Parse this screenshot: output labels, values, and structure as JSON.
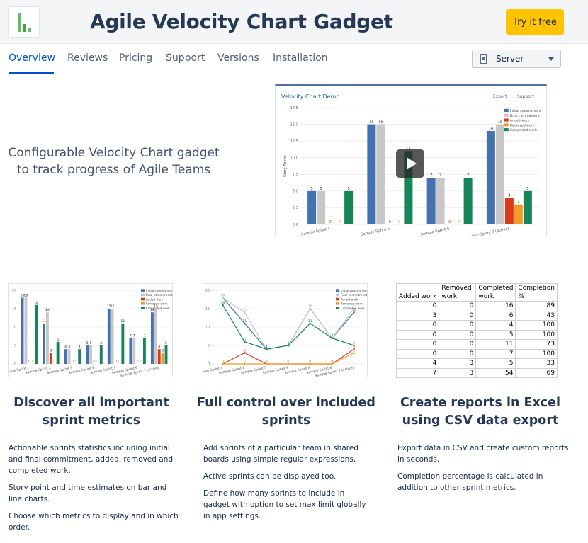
{
  "app": {
    "title": "Agile Velocity Chart Gadget",
    "cta_label": "Try it free"
  },
  "nav": {
    "tabs": [
      "Overview",
      "Reviews",
      "Pricing",
      "Support",
      "Versions",
      "Installation"
    ],
    "active_tab": "Overview",
    "hosting_selected": "Server"
  },
  "hero": {
    "tagline_line1": "Configurable Velocity Chart gadget",
    "tagline_line2": "to track progress of Agile Teams",
    "video_title": "Velocity Chart Demo",
    "export_label": "Export",
    "support_label": "Support"
  },
  "colors": {
    "accent": "#0052cc",
    "cta": "#ffc400",
    "initial": "#4472b0",
    "final": "#c8c8c8",
    "added": "#d83a1a",
    "removed": "#f29b2a",
    "completed": "#16855a"
  },
  "chart_data": [
    {
      "name": "hero-velocity-chart",
      "type": "bar",
      "title": "Velocity Chart Demo",
      "ylabel": "Story Points",
      "ylim": [
        0,
        17.5
      ],
      "yticks": [
        0.0,
        2.5,
        5.0,
        7.5,
        10.0,
        12.5,
        15.0,
        17.5
      ],
      "categories": [
        "Sample Sprint 4",
        "Sample Sprint 5",
        "Sample Sprint 6",
        "Sample Sprint 7 (active)"
      ],
      "series": [
        {
          "name": "Initial commitment",
          "values": [
            5,
            15,
            7,
            14
          ]
        },
        {
          "name": "Final commitment",
          "values": [
            5,
            15,
            7,
            15
          ]
        },
        {
          "name": "Added work",
          "values": [
            0,
            0,
            0,
            4
          ]
        },
        {
          "name": "Removed work",
          "values": [
            0,
            0,
            0,
            3
          ]
        },
        {
          "name": "Completed work",
          "values": [
            5,
            11,
            7,
            5
          ]
        }
      ]
    },
    {
      "name": "thumb-bar-chart",
      "type": "bar",
      "ylim": [
        0,
        20
      ],
      "yticks": [
        0,
        5,
        10,
        15,
        20
      ],
      "categories": [
        "Sample Sprint 1",
        "Sample Sprint 2",
        "Sample Sprint 3",
        "Sample Sprint 4",
        "Sample Sprint 5",
        "Sample Sprint 6",
        "Sample Sprint 7 (active)"
      ],
      "series": [
        {
          "name": "Initial commitment",
          "values": [
            18,
            11,
            4,
            5,
            15,
            7,
            14
          ]
        },
        {
          "name": "Final commitment",
          "values": [
            18,
            14,
            4,
            5,
            15,
            7,
            15
          ]
        },
        {
          "name": "Added work",
          "values": [
            0,
            3,
            0,
            0,
            0,
            0,
            4
          ]
        },
        {
          "name": "Removed work",
          "values": [
            0,
            0,
            0,
            0,
            0,
            0,
            3
          ]
        },
        {
          "name": "Completed work",
          "values": [
            16,
            6,
            4,
            5,
            11,
            7,
            5
          ]
        }
      ]
    },
    {
      "name": "thumb-line-chart",
      "type": "line",
      "ylim": [
        0,
        20
      ],
      "yticks": [
        0,
        5,
        10,
        15,
        20
      ],
      "categories": [
        "Sample Sprint 1",
        "Sample Sprint 2",
        "Sample Sprint 3",
        "Sample Sprint 4",
        "Sample Sprint 5",
        "Sample Sprint 6",
        "Sample Sprint 7 (active)"
      ],
      "series": [
        {
          "name": "Initial commitment",
          "values": [
            18,
            11,
            4,
            5,
            15,
            7,
            14
          ]
        },
        {
          "name": "Final commitment",
          "values": [
            18,
            14,
            4,
            5,
            15,
            7,
            15
          ]
        },
        {
          "name": "Added work",
          "values": [
            0,
            3,
            0,
            0,
            0,
            0,
            4
          ]
        },
        {
          "name": "Removed work",
          "values": [
            0,
            0,
            0,
            0,
            0,
            0,
            3
          ]
        },
        {
          "name": "Completed work",
          "values": [
            16,
            6,
            4,
            5,
            11,
            7,
            5
          ]
        }
      ]
    }
  ],
  "csv_table": {
    "headers": [
      "Added work",
      "Removed work",
      "Completed work",
      "Completion %"
    ],
    "rows": [
      [
        "0",
        "0",
        "16",
        "89"
      ],
      [
        "3",
        "0",
        "6",
        "43"
      ],
      [
        "0",
        "0",
        "4",
        "100"
      ],
      [
        "0",
        "0",
        "5",
        "100"
      ],
      [
        "0",
        "0",
        "11",
        "73"
      ],
      [
        "0",
        "0",
        "7",
        "100"
      ],
      [
        "4",
        "3",
        "5",
        "33"
      ],
      [
        "7",
        "3",
        "54",
        "69"
      ]
    ]
  },
  "features": [
    {
      "title_line1": "Discover all important",
      "title_line2": "sprint metrics",
      "paragraphs": [
        [
          "Actionable sprints statistics including initial",
          "and final commitment, added, removed and",
          "completed work."
        ],
        [
          "Story point and time estimates on bar and",
          "line charts."
        ],
        [
          "Choose which metrics to display and in which",
          "order."
        ]
      ]
    },
    {
      "title_line1": "Full control over included",
      "title_line2": "sprints",
      "paragraphs": [
        [
          "Add sprints of a particular team in shared",
          "boards using simple regular expressions."
        ],
        [
          "Active sprints can be displayed too."
        ],
        [
          "Define how many sprints to include in",
          "gadget with option to set max limit globally",
          "in app settings."
        ]
      ]
    },
    {
      "title_line1": "Create reports in Excel",
      "title_line2": "using CSV data export",
      "paragraphs": [
        [
          "Export data in CSV and create custom reports",
          "in seconds."
        ],
        [
          "Completion percentage is calculated in",
          "addition to other sprint metrics."
        ]
      ]
    }
  ]
}
